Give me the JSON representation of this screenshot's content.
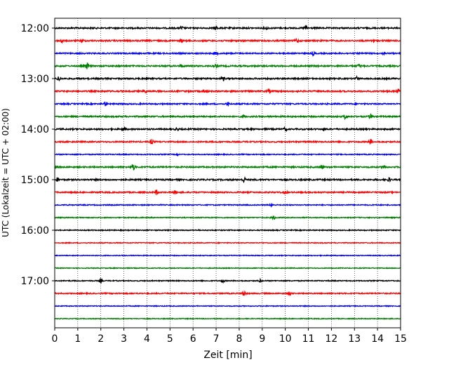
{
  "chart_data": {
    "type": "line",
    "xlabel": "Zeit  [min]",
    "ylabel": "UTC (Lokalzeit = UTC + 02:00)",
    "xlim": [
      0,
      15
    ],
    "x_ticks": [
      "0",
      "1",
      "2",
      "3",
      "4",
      "5",
      "6",
      "7",
      "8",
      "9",
      "10",
      "11",
      "12",
      "13",
      "14",
      "15"
    ],
    "y_ticks": [
      "12:00",
      "13:00",
      "14:00",
      "15:00",
      "16:00",
      "17:00"
    ],
    "grid": "vertical dotted",
    "rows_start": "12:00",
    "row_interval_minutes": 15,
    "series_colors": [
      "#000000",
      "#ff0000",
      "#0000ff",
      "#008000"
    ],
    "rows": [
      {
        "start": "12:00",
        "amplitude": 0.45,
        "events": [
          [
            5.5,
            1.1
          ],
          [
            7,
            1.2
          ],
          [
            9.2,
            0.9
          ],
          [
            10.9,
            1.6
          ]
        ]
      },
      {
        "start": "12:15",
        "amplitude": 0.45,
        "events": [
          [
            0.3,
            1.5
          ],
          [
            1.2,
            0.9
          ],
          [
            5.5,
            0.9
          ],
          [
            10.5,
            1.1
          ],
          [
            13.8,
            1.0
          ]
        ]
      },
      {
        "start": "12:30",
        "amplitude": 0.4,
        "events": [
          [
            7,
            0.8
          ],
          [
            11.2,
            1.1
          ],
          [
            14.3,
            0.8
          ]
        ]
      },
      {
        "start": "12:45",
        "amplitude": 0.45,
        "events": [
          [
            1.4,
            2.0
          ],
          [
            5.5,
            0.9
          ],
          [
            7,
            1.0
          ],
          [
            13.2,
            1.0
          ]
        ]
      },
      {
        "start": "13:00",
        "amplitude": 0.45,
        "events": [
          [
            0.2,
            1.6
          ],
          [
            7.3,
            1.3
          ],
          [
            13.1,
            1.0
          ]
        ]
      },
      {
        "start": "13:15",
        "amplitude": 0.45,
        "events": [
          [
            3.9,
            1.5
          ],
          [
            6.5,
            0.9
          ],
          [
            9.3,
            1.2
          ],
          [
            14.9,
            1.2
          ]
        ]
      },
      {
        "start": "13:30",
        "amplitude": 0.4,
        "events": [
          [
            2.2,
            1.4
          ],
          [
            7.5,
            0.9
          ]
        ]
      },
      {
        "start": "13:45",
        "amplitude": 0.45,
        "events": [
          [
            8.2,
            1.1
          ],
          [
            12.6,
            1.3
          ],
          [
            13.7,
            1.6
          ]
        ]
      },
      {
        "start": "14:00",
        "amplitude": 0.45,
        "events": [
          [
            3,
            1.0
          ],
          [
            5.3,
            0.9
          ],
          [
            10,
            1.0
          ],
          [
            11.7,
            0.8
          ]
        ]
      },
      {
        "start": "14:15",
        "amplitude": 0.4,
        "events": [
          [
            4.2,
            1.5
          ],
          [
            13.7,
            1.7
          ]
        ]
      },
      {
        "start": "14:30",
        "amplitude": 0.3,
        "events": [
          [
            5.3,
            0.6
          ]
        ]
      },
      {
        "start": "14:45",
        "amplitude": 0.45,
        "events": [
          [
            3.4,
            2.1
          ],
          [
            11.6,
            1.3
          ],
          [
            14.3,
            1.4
          ]
        ]
      },
      {
        "start": "15:00",
        "amplitude": 0.45,
        "events": [
          [
            0.1,
            1.2
          ],
          [
            8.2,
            1.6
          ],
          [
            14.5,
            1.2
          ]
        ]
      },
      {
        "start": "15:15",
        "amplitude": 0.4,
        "events": [
          [
            4.4,
            1.6
          ],
          [
            5.2,
            1.0
          ],
          [
            10,
            0.8
          ]
        ]
      },
      {
        "start": "15:30",
        "amplitude": 0.3,
        "events": [
          [
            9.4,
            0.7
          ]
        ]
      },
      {
        "start": "15:45",
        "amplitude": 0.3,
        "events": [
          [
            9.5,
            1.4
          ]
        ]
      },
      {
        "start": "16:00",
        "amplitude": 0.3,
        "events": []
      },
      {
        "start": "16:15",
        "amplitude": 0.25,
        "events": []
      },
      {
        "start": "16:30",
        "amplitude": 0.25,
        "events": []
      },
      {
        "start": "16:45",
        "amplitude": 0.25,
        "events": []
      },
      {
        "start": "17:00",
        "amplitude": 0.3,
        "events": [
          [
            2,
            1.1
          ],
          [
            7.3,
            1.0
          ],
          [
            8.9,
            0.8
          ]
        ]
      },
      {
        "start": "17:15",
        "amplitude": 0.35,
        "events": [
          [
            8.2,
            2.0
          ],
          [
            10.2,
            1.1
          ]
        ]
      },
      {
        "start": "17:30",
        "amplitude": 0.25,
        "events": []
      },
      {
        "start": "17:45",
        "amplitude": 0.25,
        "events": []
      }
    ]
  }
}
